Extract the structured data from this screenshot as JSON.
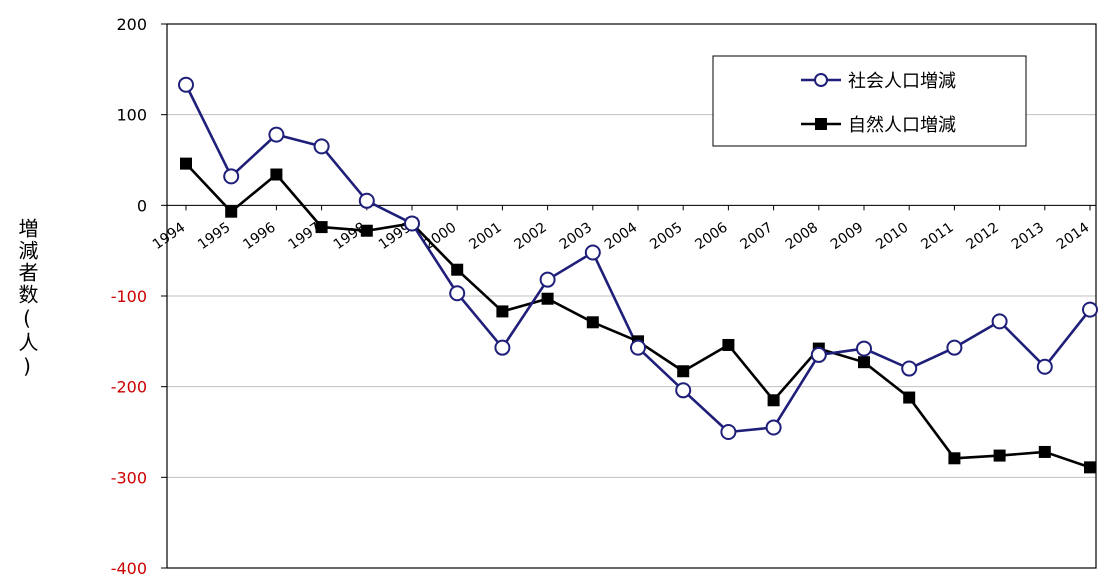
{
  "chart_data": {
    "type": "line",
    "ylabel": "増減者数(人)",
    "xlabel": "",
    "ylim": [
      -400,
      200
    ],
    "yticks": [
      200,
      100,
      0,
      -100,
      -200,
      -300,
      -400
    ],
    "x": [
      "1994",
      "1995",
      "1996",
      "1997",
      "1998",
      "1999",
      "2000",
      "2001",
      "2002",
      "2003",
      "2004",
      "2005",
      "2006",
      "2007",
      "2008",
      "2009",
      "2010",
      "2011",
      "2012",
      "2013",
      "2014"
    ],
    "grid": true,
    "legend": "top-right",
    "series": [
      {
        "name": "社会人口増減",
        "color": "#1f1f7a",
        "marker": "open-circle",
        "values": [
          133,
          32,
          78,
          65,
          5,
          -20,
          -97,
          -157,
          -82,
          -52,
          -157,
          -204,
          -250,
          -245,
          -165,
          -158,
          -180,
          -157,
          -128,
          -178,
          -115
        ]
      },
      {
        "name": "自然人口増減",
        "color": "#000000",
        "marker": "filled-square",
        "values": [
          46,
          -7,
          34,
          -24,
          -28,
          -20,
          -71,
          -117,
          -103,
          -129,
          -150,
          -183,
          -154,
          -215,
          -158,
          -173,
          -212,
          -279,
          -276,
          -272,
          -289
        ]
      }
    ],
    "colors": {
      "axis": "#000000",
      "grid": "#c0c0c0",
      "negative_tick": "#cc0000",
      "positive_tick": "#000000"
    }
  }
}
